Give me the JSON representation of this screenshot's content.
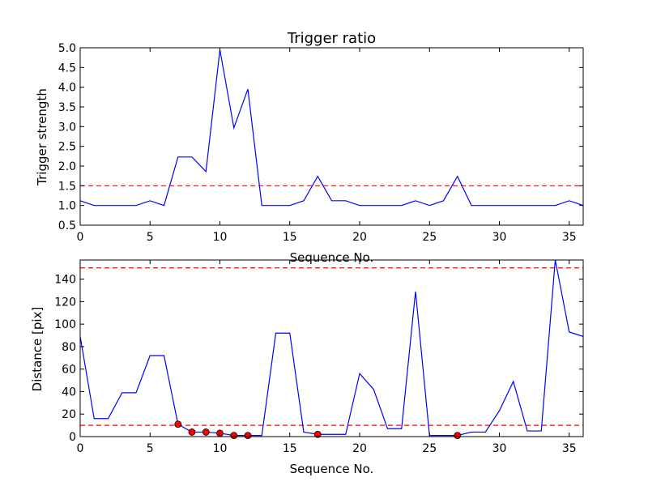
{
  "chart_data": [
    {
      "type": "line",
      "title": "Trigger ratio",
      "xlabel": "Sequence No.",
      "ylabel": "Trigger strength",
      "xlim": [
        0,
        36
      ],
      "ylim": [
        0.5,
        5.0
      ],
      "xticks": [
        "0",
        "5",
        "10",
        "15",
        "20",
        "25",
        "30",
        "35"
      ],
      "yticks": [
        "0.5",
        "1.0",
        "1.5",
        "2.0",
        "2.5",
        "3.0",
        "3.5",
        "4.0",
        "4.5",
        "5.0"
      ],
      "grid": false,
      "series": [
        {
          "color": "#0000ff",
          "x": [
            0,
            1,
            2,
            3,
            4,
            5,
            6,
            7,
            8,
            9,
            10,
            11,
            12,
            13,
            14,
            15,
            16,
            17,
            18,
            19,
            20,
            21,
            22,
            23,
            24,
            25,
            26,
            27,
            28,
            29,
            30,
            31,
            32,
            33,
            34,
            35,
            36
          ],
          "y": [
            1.12,
            1.0,
            1.0,
            1.0,
            1.0,
            1.12,
            1.0,
            2.23,
            2.23,
            1.86,
            4.95,
            2.97,
            3.95,
            1.0,
            1.0,
            1.0,
            1.12,
            1.74,
            1.12,
            1.12,
            1.0,
            1.0,
            1.0,
            1.0,
            1.12,
            1.0,
            1.12,
            1.74,
            1.0,
            1.0,
            1.0,
            1.0,
            1.0,
            1.0,
            1.0,
            1.12,
            1.0
          ]
        }
      ],
      "threshold": {
        "value": 1.5,
        "color": "#ff0000",
        "style": "dashed"
      }
    },
    {
      "type": "line",
      "title": "",
      "xlabel": "Sequence No.",
      "ylabel": "Distance [pix]",
      "xlim": [
        0,
        36
      ],
      "ylim": [
        0,
        157
      ],
      "xticks": [
        "0",
        "5",
        "10",
        "15",
        "20",
        "25",
        "30",
        "35"
      ],
      "yticks": [
        "0",
        "20",
        "40",
        "60",
        "80",
        "100",
        "120",
        "140"
      ],
      "grid": false,
      "series": [
        {
          "color": "#0000ff",
          "x": [
            0,
            1,
            2,
            3,
            4,
            5,
            6,
            7,
            8,
            9,
            10,
            11,
            12,
            13,
            14,
            15,
            16,
            17,
            18,
            19,
            20,
            21,
            22,
            23,
            24,
            25,
            26,
            27,
            28,
            29,
            30,
            31,
            32,
            33,
            34,
            35,
            36
          ],
          "y": [
            89,
            16,
            16,
            39,
            39,
            72,
            72,
            11,
            4,
            4,
            3,
            1,
            1,
            1,
            92,
            92,
            4,
            2,
            2,
            2,
            56,
            42,
            7,
            7,
            129,
            1,
            1,
            1,
            4,
            4,
            23,
            49,
            5,
            5,
            157,
            93,
            89
          ]
        }
      ],
      "markers": {
        "color": "#ff0000",
        "x": [
          7,
          8,
          9,
          10,
          11,
          12,
          17,
          27
        ],
        "y": [
          11,
          4,
          4,
          3,
          1,
          1,
          2,
          1
        ]
      },
      "thresholds": [
        {
          "value": 150,
          "color": "#ff0000",
          "style": "dashed"
        },
        {
          "value": 10,
          "color": "#ff0000",
          "style": "dashed"
        }
      ]
    }
  ]
}
